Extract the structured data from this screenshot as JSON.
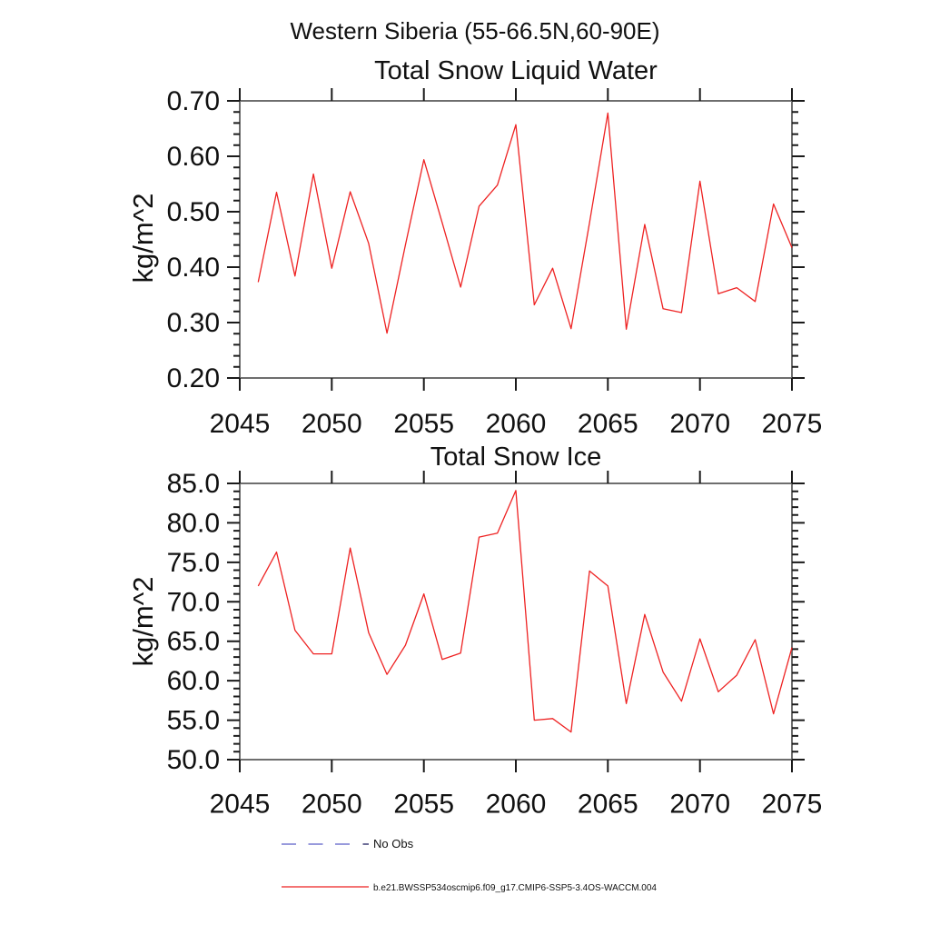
{
  "header": {
    "title": "Western Siberia (55-66.5N,60-90E)"
  },
  "chart_data": [
    {
      "type": "line",
      "title": "Total Snow Liquid Water",
      "ylabel": "kg/m^2",
      "xlabel": "",
      "xlim": [
        2045,
        2075
      ],
      "ylim": [
        0.2,
        0.7
      ],
      "xticks": [
        2045,
        2050,
        2055,
        2060,
        2065,
        2070,
        2075
      ],
      "xtick_labels": [
        "2045",
        "2050",
        "2055",
        "2060",
        "2065",
        "2070",
        "2075"
      ],
      "yticks": [
        0.2,
        0.3,
        0.4,
        0.5,
        0.6,
        0.7
      ],
      "ytick_labels": [
        "0.20",
        "0.30",
        "0.40",
        "0.50",
        "0.60",
        "0.70"
      ],
      "yminor_step": 0.02,
      "grid": false,
      "x": [
        2046,
        2047,
        2048,
        2049,
        2050,
        2051,
        2052,
        2053,
        2054,
        2055,
        2056,
        2057,
        2058,
        2059,
        2060,
        2061,
        2062,
        2063,
        2064,
        2065,
        2066,
        2067,
        2068,
        2069,
        2070,
        2071,
        2072,
        2073,
        2074,
        2075
      ],
      "series": [
        {
          "name": "b.e21.BWSSP534oscmip6.f09_g17.CMIP6-SSP5-3.4OS-WACCM.004",
          "color": "#ee2222",
          "values": [
            0.373,
            0.535,
            0.384,
            0.568,
            0.398,
            0.536,
            0.443,
            0.281,
            0.44,
            0.594,
            0.48,
            0.364,
            0.51,
            0.548,
            0.657,
            0.332,
            0.398,
            0.289,
            0.48,
            0.678,
            0.288,
            0.477,
            0.325,
            0.318,
            0.555,
            0.352,
            0.363,
            0.338,
            0.514,
            0.435
          ]
        }
      ]
    },
    {
      "type": "line",
      "title": "Total Snow Ice",
      "ylabel": "kg/m^2",
      "xlabel": "",
      "xlim": [
        2045,
        2075
      ],
      "ylim": [
        50.0,
        85.0
      ],
      "xticks": [
        2045,
        2050,
        2055,
        2060,
        2065,
        2070,
        2075
      ],
      "xtick_labels": [
        "2045",
        "2050",
        "2055",
        "2060",
        "2065",
        "2070",
        "2075"
      ],
      "yticks": [
        50.0,
        55.0,
        60.0,
        65.0,
        70.0,
        75.0,
        80.0,
        85.0
      ],
      "ytick_labels": [
        "50.0",
        "55.0",
        "60.0",
        "65.0",
        "70.0",
        "75.0",
        "80.0",
        "85.0"
      ],
      "yminor_step": 1.0,
      "grid": false,
      "x": [
        2046,
        2047,
        2048,
        2049,
        2050,
        2051,
        2052,
        2053,
        2054,
        2055,
        2056,
        2057,
        2058,
        2059,
        2060,
        2061,
        2062,
        2063,
        2064,
        2065,
        2066,
        2067,
        2068,
        2069,
        2070,
        2071,
        2072,
        2073,
        2074,
        2075
      ],
      "series": [
        {
          "name": "b.e21.BWSSP534oscmip6.f09_g17.CMIP6-SSP5-3.4OS-WACCM.004",
          "color": "#ee2222",
          "values": [
            72.0,
            76.3,
            66.4,
            63.4,
            63.4,
            76.8,
            66.1,
            60.8,
            64.5,
            71.0,
            62.7,
            63.5,
            78.2,
            78.7,
            84.1,
            55.0,
            55.2,
            53.5,
            73.9,
            72.0,
            57.1,
            68.4,
            61.1,
            57.4,
            65.3,
            58.6,
            60.7,
            65.2,
            55.8,
            64.2
          ]
        }
      ]
    }
  ],
  "legend": {
    "position": "bottom",
    "items": [
      {
        "label": "No Obs",
        "style": "dashed",
        "color": "#7678d1",
        "end_dash_color": "#3c3c74"
      },
      {
        "label": "b.e21.BWSSP534oscmip6.f09_g17.CMIP6-SSP5-3.4OS-WACCM.004",
        "style": "solid",
        "color": "#ee2222"
      }
    ]
  }
}
